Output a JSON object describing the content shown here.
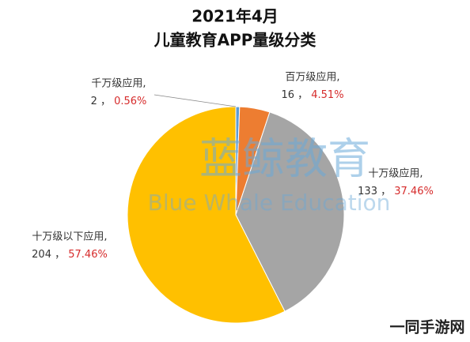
{
  "chart_data": {
    "type": "pie",
    "title": "2021年4月",
    "subtitle": "儿童教育APP量级分类",
    "categories": [
      "千万级应用,",
      "百万级应用,",
      "十万级应用,",
      "十万级以下应用,"
    ],
    "values": [
      2,
      16,
      133,
      204
    ],
    "percents": [
      0.56,
      4.51,
      37.46,
      57.46
    ],
    "percent_labels": [
      "0.56%",
      "4.51%",
      "37.46%",
      "57.46%"
    ],
    "colors": [
      "#5b9bd5",
      "#ed7d31",
      "#a5a5a5",
      "#ffc000"
    ]
  },
  "watermark": {
    "title": "蓝鲸教育",
    "subtitle": "Blue Whale Education"
  },
  "footer": "一同手游网"
}
